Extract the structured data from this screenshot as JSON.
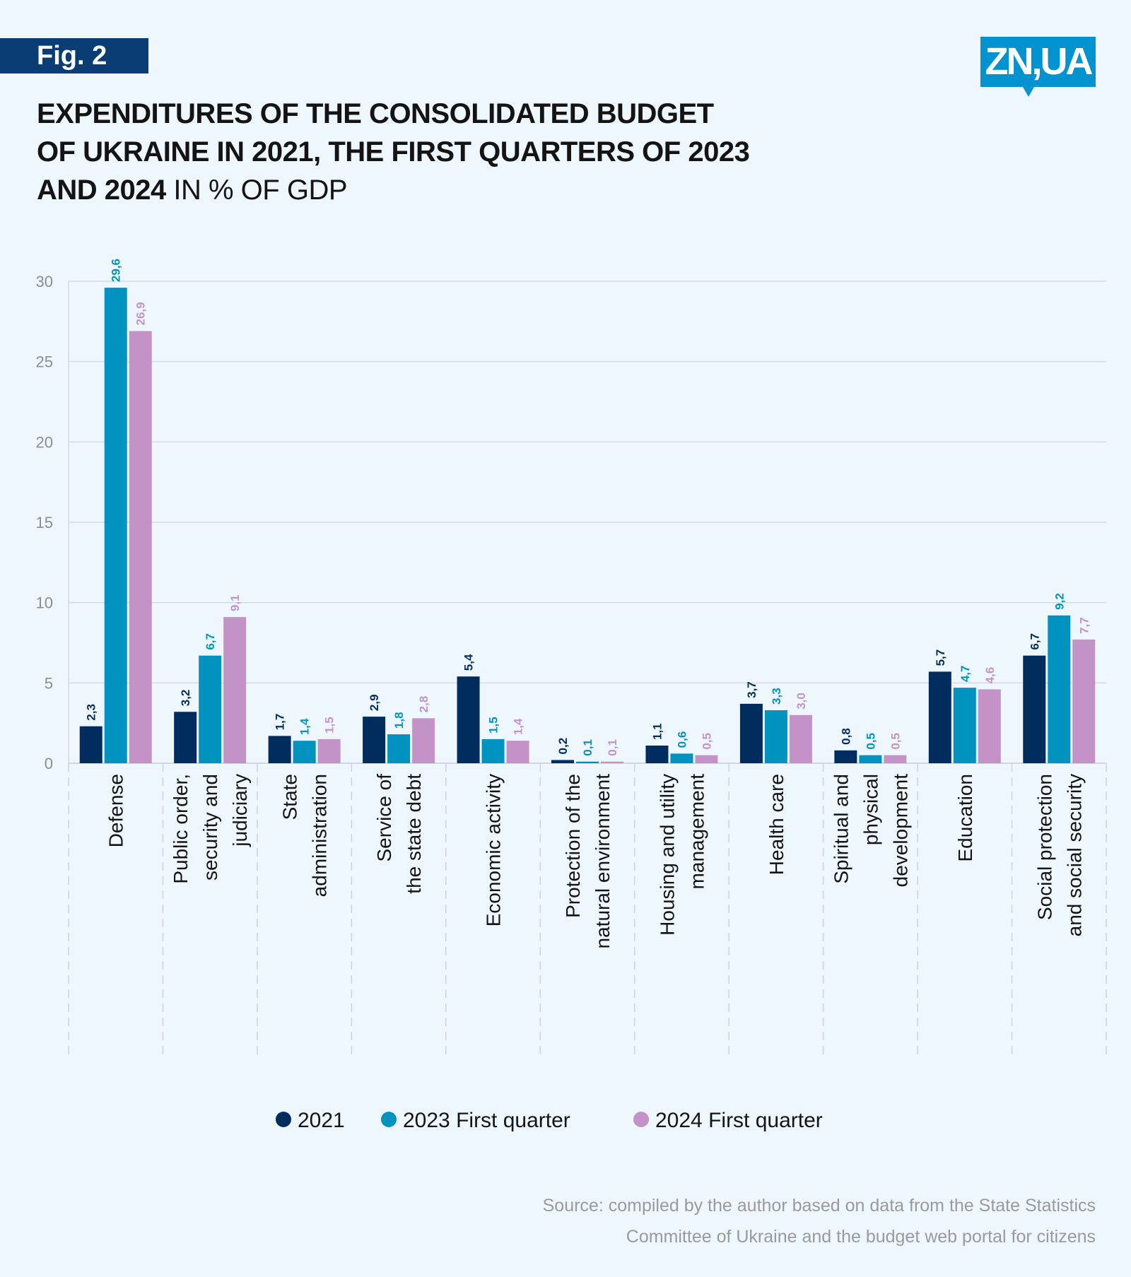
{
  "fig_label": "Fig. 2",
  "logo": "ZN,UA",
  "title": {
    "line1": "EXPENDITURES OF THE CONSOLIDATED BUDGET",
    "line2": "OF UKRAINE IN 2021, THE FIRST QUARTERS OF 2023",
    "line3_bold": "AND 2024",
    "line3_light": " IN % OF GDP"
  },
  "source": {
    "line1": "Source: compiled by the author based on data from the State Statistics",
    "line2": "Committee of Ukraine and the budget web portal for citizens"
  },
  "chart_data": {
    "type": "bar",
    "title": "EXPENDITURES OF THE CONSOLIDATED BUDGET OF UKRAINE IN 2021, THE FIRST QUARTERS OF 2023 AND 2024 IN % OF GDP",
    "ylim": [
      0,
      30
    ],
    "yticks": [
      "0",
      "5",
      "10",
      "15",
      "20",
      "25",
      "30"
    ],
    "grid": true,
    "legend": "bottom",
    "categories": [
      {
        "label": "Defense",
        "lines": [
          "Defense"
        ]
      },
      {
        "label": "Public order, security and judiciary",
        "lines": [
          "Public order,",
          "security and",
          "judiciary"
        ]
      },
      {
        "label": "State administration",
        "lines": [
          "State",
          "administration"
        ]
      },
      {
        "label": "Service of the state debt",
        "lines": [
          "Service of",
          "the state debt"
        ]
      },
      {
        "label": "Economic activity",
        "lines": [
          "Economic activity"
        ]
      },
      {
        "label": "Protection of the natural environment",
        "lines": [
          "Protection of the",
          "natural environment"
        ]
      },
      {
        "label": "Housing and utility management",
        "lines": [
          "Housing and utility",
          "management"
        ]
      },
      {
        "label": "Health care",
        "lines": [
          "Health care"
        ]
      },
      {
        "label": "Spiritual and physical development",
        "lines": [
          "Spiritual and",
          "physical",
          "development"
        ]
      },
      {
        "label": "Education",
        "lines": [
          "Education"
        ]
      },
      {
        "label": "Social protection and social security",
        "lines": [
          "Social protection",
          "and social security"
        ]
      }
    ],
    "series": [
      {
        "name": "2021",
        "color": "#002d5e",
        "values": [
          2.3,
          3.2,
          1.7,
          2.9,
          5.4,
          0.2,
          1.1,
          3.7,
          0.8,
          5.7,
          6.7
        ],
        "labels": [
          "2,3",
          "3,2",
          "1,7",
          "2,9",
          "5,4",
          "0,2",
          "1,1",
          "3,7",
          "0,8",
          "5,7",
          "6,7"
        ]
      },
      {
        "name": "2023 First quarter",
        "color": "#0093c0",
        "values": [
          29.6,
          6.7,
          1.4,
          1.8,
          1.5,
          0.1,
          0.6,
          3.3,
          0.5,
          4.7,
          9.2
        ],
        "labels": [
          "29,6",
          "6,7",
          "1,4",
          "1,8",
          "1,5",
          "0,1",
          "0,6",
          "3,3",
          "0,5",
          "4,7",
          "9,2"
        ]
      },
      {
        "name": "2024 First quarter",
        "color": "#c393c7",
        "values": [
          26.9,
          9.1,
          1.5,
          2.8,
          1.4,
          0.1,
          0.5,
          3.0,
          0.5,
          4.6,
          7.7
        ],
        "labels": [
          "26,9",
          "9,1",
          "1,5",
          "2,8",
          "1,4",
          "0,1",
          "0,5",
          "3,0",
          "0,5",
          "4,6",
          "7,7"
        ]
      }
    ]
  }
}
